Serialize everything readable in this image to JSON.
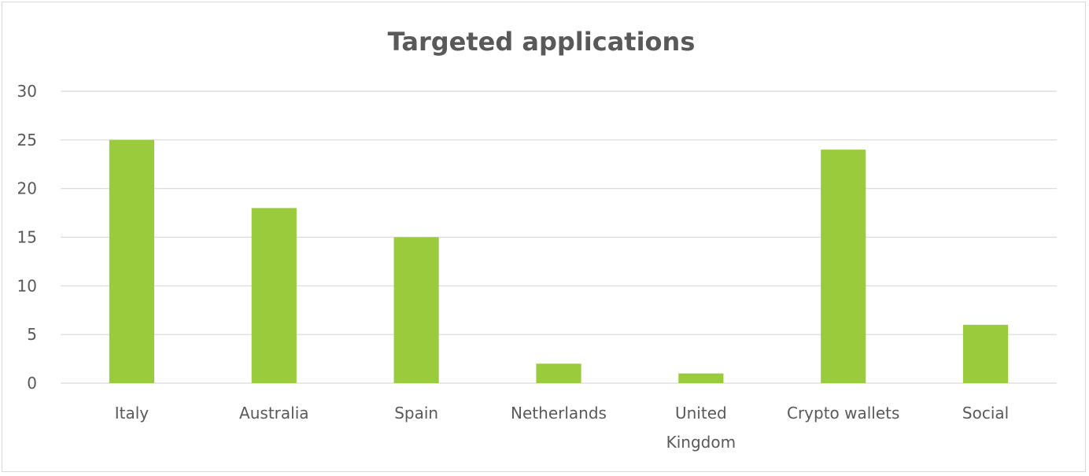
{
  "chart_data": {
    "type": "bar",
    "title": "Targeted applications",
    "xlabel": "",
    "ylabel": "",
    "categories": [
      "Italy",
      "Australia",
      "Spain",
      "Netherlands",
      "United Kingdom",
      "Crypto wallets",
      "Social"
    ],
    "values": [
      25,
      18,
      15,
      2,
      1,
      24,
      6
    ],
    "ylim": [
      0,
      30
    ],
    "yticks": [
      0,
      5,
      10,
      15,
      20,
      25,
      30
    ],
    "grid": true,
    "legend": "none",
    "bar_color": "#9acb3c"
  }
}
